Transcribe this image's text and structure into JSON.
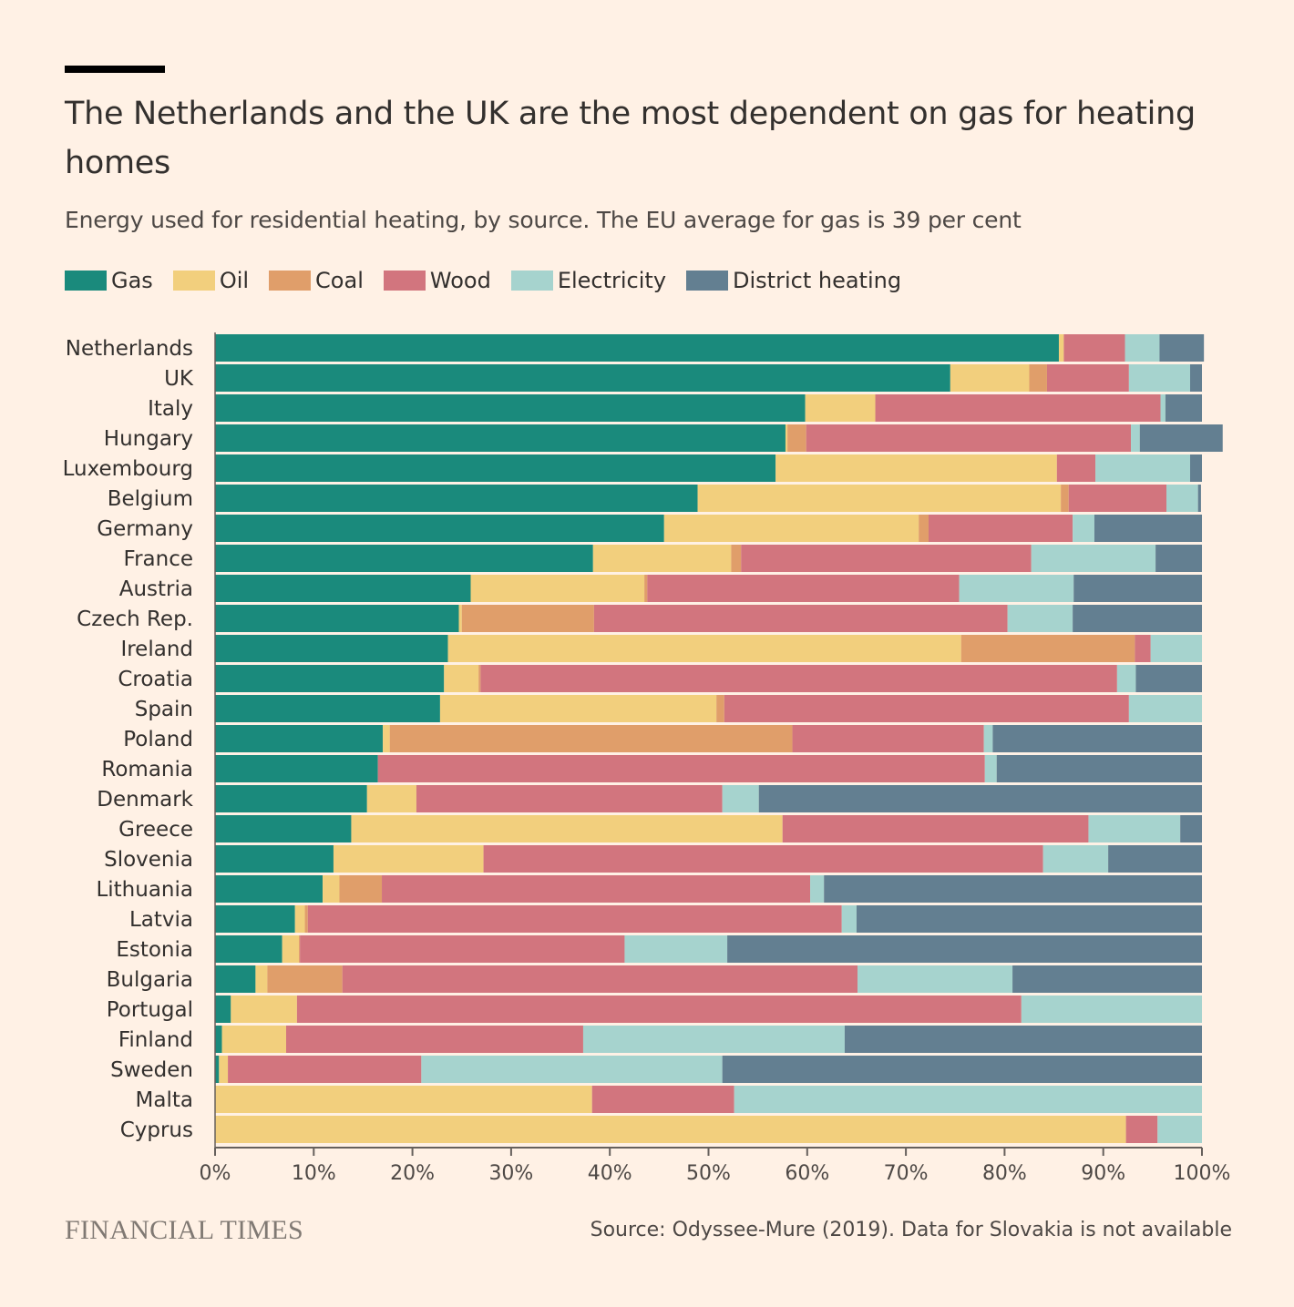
{
  "header": {
    "title": "The Netherlands and the UK are the most dependent on gas for heating homes",
    "subtitle": "Energy used for residential heating, by source. The EU average for gas is 39 per cent"
  },
  "footer": {
    "brand": "FINANCIAL TIMES",
    "source": "Source: Odyssee-Mure (2019). Data for Slovakia is not available"
  },
  "chart_data": {
    "type": "bar",
    "orientation": "horizontal",
    "stacked": true,
    "title": "The Netherlands and the UK are the most dependent on gas for heating homes",
    "subtitle": "Energy used for residential heating, by source. The EU average for gas is 39 per cent",
    "xlabel": "",
    "ylabel": "",
    "xlim": [
      0,
      100
    ],
    "x_ticks": [
      "0%",
      "10%",
      "20%",
      "30%",
      "40%",
      "50%",
      "60%",
      "70%",
      "80%",
      "90%",
      "100%"
    ],
    "legend_position": "top-left",
    "categories": [
      "Netherlands",
      "UK",
      "Italy",
      "Hungary",
      "Luxembourg",
      "Belgium",
      "Germany",
      "France",
      "Austria",
      "Czech Rep.",
      "Ireland",
      "Croatia",
      "Spain",
      "Poland",
      "Romania",
      "Denmark",
      "Greece",
      "Slovenia",
      "Lithuania",
      "Latvia",
      "Estonia",
      "Bulgaria",
      "Portugal",
      "Finland",
      "Sweden",
      "Malta",
      "Cyprus"
    ],
    "series": [
      {
        "name": "Gas",
        "color": "#1A8A7C",
        "values": [
          85.5,
          74.5,
          59.8,
          57.8,
          56.8,
          48.9,
          45.5,
          38.3,
          25.9,
          24.7,
          23.6,
          23.2,
          22.8,
          17.0,
          16.5,
          15.4,
          13.8,
          12.0,
          10.9,
          8.1,
          6.8,
          4.1,
          1.6,
          0.7,
          0.4,
          0,
          0
        ]
      },
      {
        "name": "Oil",
        "color": "#F2CF7D",
        "values": [
          0.5,
          8.0,
          7.1,
          0.2,
          28.5,
          36.8,
          25.8,
          14.0,
          17.6,
          0.3,
          52.0,
          3.5,
          28.0,
          0.7,
          0,
          5.0,
          43.7,
          15.2,
          1.7,
          1.0,
          1.7,
          1.2,
          6.7,
          6.5,
          0.9,
          38.2,
          92.3
        ]
      },
      {
        "name": "Coal",
        "color": "#E09E6A",
        "values": [
          0,
          1.8,
          0,
          1.9,
          0,
          0.8,
          1.0,
          1.0,
          0.3,
          13.4,
          17.6,
          0.2,
          0.8,
          40.8,
          0,
          0,
          0,
          0,
          4.3,
          0.3,
          0.1,
          7.6,
          0,
          0,
          0,
          0,
          0
        ]
      },
      {
        "name": "Wood",
        "color": "#D2757E",
        "values": [
          6.2,
          8.3,
          28.9,
          32.9,
          3.9,
          9.9,
          14.6,
          29.4,
          31.6,
          41.9,
          1.6,
          64.5,
          41.0,
          19.4,
          61.5,
          31.0,
          31.0,
          56.7,
          43.4,
          54.1,
          32.9,
          52.2,
          73.4,
          30.1,
          19.6,
          14.4,
          3.2
        ]
      },
      {
        "name": "Electricity",
        "color": "#A6D3CE",
        "values": [
          3.5,
          6.2,
          0.5,
          0.9,
          9.6,
          3.2,
          2.2,
          12.6,
          11.6,
          6.6,
          5.2,
          1.9,
          7.4,
          0.9,
          1.2,
          3.7,
          9.3,
          6.6,
          1.4,
          1.5,
          10.4,
          15.7,
          18.3,
          26.5,
          30.5,
          47.4,
          4.5
        ]
      },
      {
        "name": "District heating",
        "color": "#637F91",
        "values": [
          4.5,
          1.2,
          3.7,
          8.4,
          1.2,
          0.3,
          10.9,
          4.7,
          13.0,
          13.1,
          0,
          6.7,
          0,
          21.2,
          20.8,
          44.9,
          2.2,
          9.5,
          38.3,
          35.0,
          48.1,
          19.2,
          0,
          36.2,
          48.6,
          0,
          0
        ]
      }
    ]
  }
}
